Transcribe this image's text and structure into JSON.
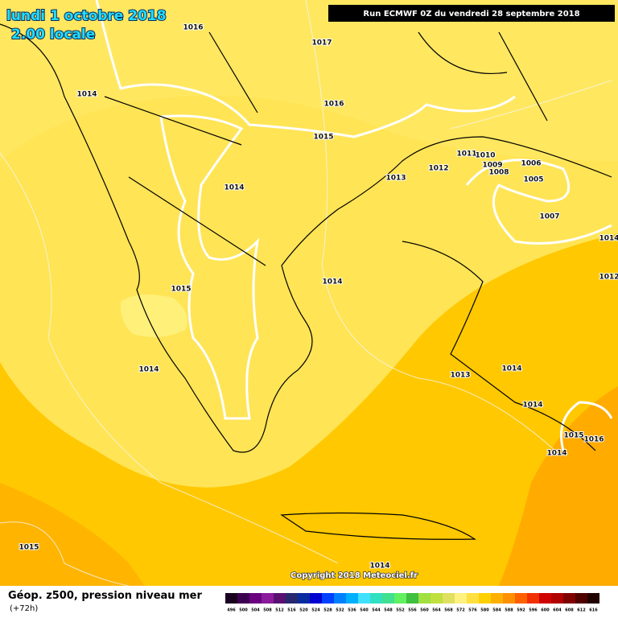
{
  "header": {
    "date": "lundi 1 octobre 2018",
    "time": "2.00 locale",
    "run": "Run ECMWF 0Z du vendredi 28 septembre 2018"
  },
  "isobar_labels": [
    "1016",
    "1017",
    "1014",
    "1016",
    "1015",
    "1011",
    "1010",
    "1012",
    "1009",
    "1008",
    "1006",
    "1013",
    "1005",
    "1014",
    "1007",
    "1014",
    "1015",
    "1014",
    "1012",
    "1014",
    "1013",
    "1014",
    "1014",
    "1015",
    "1016",
    "1014",
    "1015",
    "1014"
  ],
  "copyright": "Copyright 2018 Meteociel.fr",
  "footer": {
    "title": "Géop. z500, pression niveau mer",
    "lead": "(+72h)"
  },
  "color_scale": {
    "labels": [
      "496",
      "500",
      "504",
      "508",
      "512",
      "516",
      "520",
      "524",
      "528",
      "532",
      "536",
      "540",
      "544",
      "548",
      "552",
      "556",
      "560",
      "564",
      "568",
      "572",
      "576",
      "580",
      "584",
      "588",
      "592",
      "596",
      "600",
      "604",
      "608",
      "612",
      "616"
    ],
    "colors": [
      "#1a0020",
      "#3c0050",
      "#6a0080",
      "#8c1a9c",
      "#5a1070",
      "#28286e",
      "#0a2aa0",
      "#0000d0",
      "#0040ff",
      "#0080ff",
      "#00b0ff",
      "#40e0ff",
      "#30e0c0",
      "#40e090",
      "#60f060",
      "#40c040",
      "#a0e040",
      "#c0e040",
      "#e0e060",
      "#fff080",
      "#ffe040",
      "#ffd000",
      "#ffb000",
      "#ff9000",
      "#ff6000",
      "#f03000",
      "#d00000",
      "#b00000",
      "#800000",
      "#500000",
      "#200000"
    ]
  }
}
